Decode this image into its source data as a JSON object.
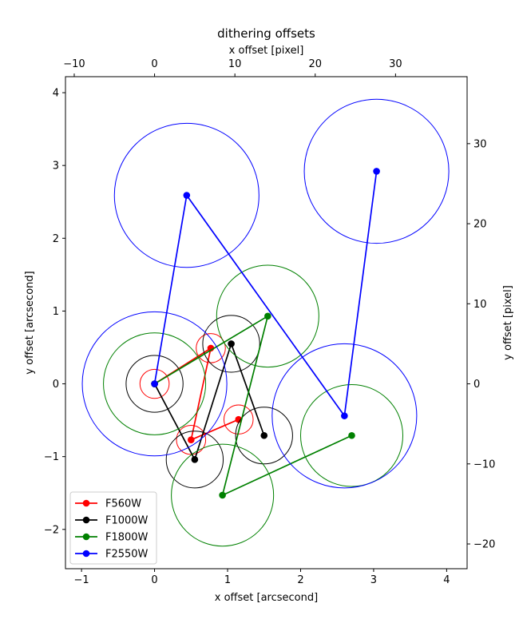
{
  "chart_data": {
    "type": "scatter",
    "title": "dithering offsets",
    "xlabel": "x offset [arcsecond]",
    "ylabel": "y offset [arcsecond]",
    "x2label": "x offset [pixel]",
    "y2label": "y offset [pixel]",
    "xlim": [
      -1.22,
      4.28
    ],
    "ylim": [
      -2.54,
      4.22
    ],
    "pixel_scale_arcsec": 0.11,
    "xticks": [
      -1,
      0,
      1,
      2,
      3,
      4
    ],
    "yticks": [
      -2,
      -1,
      0,
      1,
      2,
      3,
      4
    ],
    "x2ticks": [
      -10,
      0,
      10,
      20,
      30
    ],
    "y2ticks": [
      -20,
      -10,
      0,
      10,
      20,
      30
    ],
    "xtick_labels": [
      "−1",
      "0",
      "1",
      "2",
      "3",
      "4"
    ],
    "ytick_labels": [
      "−2",
      "−1",
      "0",
      "1",
      "2",
      "3",
      "4"
    ],
    "x2tick_labels": [
      "−10",
      "0",
      "10",
      "20",
      "30"
    ],
    "y2tick_labels": [
      "−20",
      "−10",
      "0",
      "10",
      "20",
      "30"
    ],
    "legend_location": "lower-left",
    "series": [
      {
        "name": "F560W",
        "color": "#ff0000",
        "radius": 0.2,
        "x": [
          0.0,
          0.77,
          0.5,
          1.15
        ],
        "y": [
          0.0,
          0.49,
          -0.77,
          -0.49
        ]
      },
      {
        "name": "F1000W",
        "color": "#000000",
        "radius": 0.39,
        "x": [
          0.0,
          0.55,
          1.05,
          1.5
        ],
        "y": [
          0.0,
          -1.04,
          0.55,
          -0.71
        ]
      },
      {
        "name": "F1800W",
        "color": "#008000",
        "radius": 0.7,
        "x": [
          0.0,
          1.55,
          0.93,
          2.7
        ],
        "y": [
          0.0,
          0.93,
          -1.53,
          -0.71
        ]
      },
      {
        "name": "F2550W",
        "color": "#0000ff",
        "radius": 0.99,
        "x": [
          0.0,
          0.44,
          2.6,
          3.04
        ],
        "y": [
          0.0,
          2.59,
          -0.44,
          2.92
        ]
      }
    ]
  }
}
